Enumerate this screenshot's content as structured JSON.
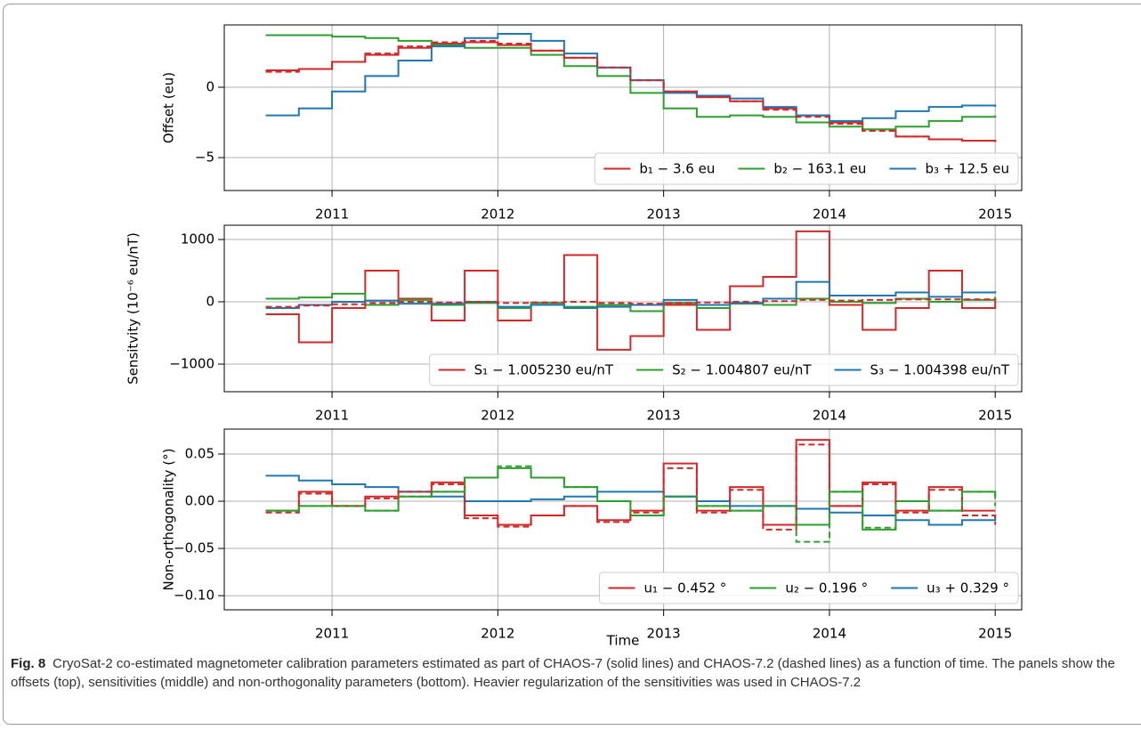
{
  "chart_data": [
    {
      "type": "line",
      "step": true,
      "ylabel": "Offset (eu)",
      "x": [
        2010.6,
        2010.8,
        2011.0,
        2011.2,
        2011.4,
        2011.6,
        2011.8,
        2012.0,
        2012.2,
        2012.4,
        2012.6,
        2012.8,
        2013.0,
        2013.2,
        2013.4,
        2013.6,
        2013.8,
        2014.0,
        2014.2,
        2014.4,
        2014.6,
        2014.8,
        2015.0
      ],
      "xlim": [
        2010.35,
        2015.16
      ],
      "xticks": [
        2011,
        2012,
        2013,
        2014,
        2015
      ],
      "ylim": [
        -7.34,
        4.43
      ],
      "yticks": [
        {
          "value": -5,
          "label": "−5"
        },
        0
      ],
      "grid": true,
      "legend": "lower right",
      "series": [
        {
          "name": "b₁ − 3.6 eu",
          "color": "#d62728",
          "values": [
            1.2,
            1.3,
            1.8,
            2.3,
            2.8,
            3.1,
            3.2,
            3.0,
            2.6,
            2.1,
            1.4,
            0.5,
            -0.3,
            -0.7,
            -1.0,
            -1.5,
            -2.0,
            -2.5,
            -3.0,
            -3.5,
            -3.7,
            -3.8,
            -3.9
          ]
        },
        {
          "name": "b₂ − 163.1 eu",
          "color": "#2ca02c",
          "values": [
            3.7,
            3.7,
            3.6,
            3.5,
            3.3,
            3.0,
            2.8,
            2.8,
            2.3,
            1.5,
            0.8,
            -0.4,
            -1.5,
            -2.1,
            -2.0,
            -2.1,
            -2.5,
            -2.8,
            -3.0,
            -2.8,
            -2.4,
            -2.1,
            -2.0
          ]
        },
        {
          "name": "b₃ + 12.5 eu",
          "color": "#1f77b4",
          "values": [
            -2.0,
            -1.5,
            -0.3,
            0.8,
            1.9,
            2.9,
            3.5,
            3.8,
            3.3,
            2.4,
            1.4,
            0.5,
            -0.4,
            -0.6,
            -0.8,
            -1.4,
            -2.0,
            -2.4,
            -2.2,
            -1.7,
            -1.4,
            -1.3,
            -1.4
          ]
        },
        {
          "color": "#d62728",
          "dash": true,
          "values": [
            1.1,
            1.3,
            1.8,
            2.4,
            2.9,
            3.2,
            3.3,
            3.1,
            2.6,
            2.1,
            1.4,
            0.5,
            -0.3,
            -0.7,
            -1.0,
            -1.6,
            -2.1,
            -2.6,
            -3.1,
            -3.5,
            -3.7,
            -3.8,
            -3.8
          ]
        }
      ]
    },
    {
      "type": "line",
      "step": true,
      "ylabel": "Sensitvity (10⁻⁶ eu/nT)",
      "x": [
        2010.6,
        2010.8,
        2011.0,
        2011.2,
        2011.4,
        2011.6,
        2011.8,
        2012.0,
        2012.2,
        2012.4,
        2012.6,
        2012.8,
        2013.0,
        2013.2,
        2013.4,
        2013.6,
        2013.8,
        2014.0,
        2014.2,
        2014.4,
        2014.6,
        2014.8,
        2015.0
      ],
      "xlim": [
        2010.35,
        2015.16
      ],
      "xticks": [
        2011,
        2012,
        2013,
        2014,
        2015
      ],
      "ylim": [
        -1443,
        1229
      ],
      "yticks": [
        {
          "value": -1000,
          "label": "−1000"
        },
        0,
        1000
      ],
      "grid": true,
      "legend": "lower right",
      "series": [
        {
          "name": "S₁ − 1.005230 eu/nT",
          "color": "#d62728",
          "values": [
            -200,
            -650,
            -100,
            500,
            50,
            -300,
            500,
            -300,
            -50,
            750,
            -770,
            -550,
            -50,
            -450,
            250,
            400,
            1130,
            -50,
            -450,
            -100,
            500,
            -100,
            50
          ]
        },
        {
          "name": "S₂ − 1.004807 eu/nT",
          "color": "#2ca02c",
          "values": [
            50,
            70,
            130,
            -50,
            30,
            -50,
            -20,
            -100,
            -20,
            -80,
            -50,
            -150,
            -20,
            -100,
            -30,
            -50,
            50,
            0,
            -20,
            50,
            0,
            30,
            80
          ]
        },
        {
          "name": "S₃ − 1.004398 eu/nT",
          "color": "#1f77b4",
          "values": [
            -100,
            -50,
            0,
            20,
            -30,
            -30,
            0,
            -80,
            -50,
            -100,
            -80,
            -50,
            30,
            -50,
            -20,
            50,
            320,
            100,
            100,
            150,
            80,
            150,
            170
          ]
        },
        {
          "color": "#d62728",
          "dash": true,
          "values": [
            -80,
            -60,
            -40,
            -20,
            0,
            -10,
            0,
            -20,
            -10,
            0,
            -20,
            -30,
            -20,
            -10,
            0,
            10,
            30,
            20,
            30,
            40,
            40,
            40,
            50
          ]
        }
      ]
    },
    {
      "type": "line",
      "step": true,
      "ylabel": "Non-orthogonality (°)",
      "xlabel": "Time",
      "x": [
        2010.6,
        2010.8,
        2011.0,
        2011.2,
        2011.4,
        2011.6,
        2011.8,
        2012.0,
        2012.2,
        2012.4,
        2012.6,
        2012.8,
        2013.0,
        2013.2,
        2013.4,
        2013.6,
        2013.8,
        2014.0,
        2014.2,
        2014.4,
        2014.6,
        2014.8,
        2015.0
      ],
      "xlim": [
        2010.35,
        2015.16
      ],
      "xticks": [
        2011,
        2012,
        2013,
        2014,
        2015
      ],
      "ylim": [
        -0.115,
        0.0764
      ],
      "yticks": [
        {
          "value": -0.1,
          "label": "−0.10"
        },
        {
          "value": -0.05,
          "label": "−0.05"
        },
        {
          "value": 0,
          "label": "0.00"
        },
        {
          "value": 0.05,
          "label": "0.05"
        }
      ],
      "grid": true,
      "legend": "lower right",
      "series": [
        {
          "name": "u₁ − 0.452 °",
          "color": "#d62728",
          "values": [
            -0.01,
            0.01,
            -0.005,
            0.005,
            0.01,
            0.02,
            -0.015,
            -0.025,
            -0.015,
            -0.005,
            -0.02,
            -0.01,
            0.04,
            -0.01,
            0.015,
            -0.025,
            0.065,
            -0.005,
            0.02,
            -0.01,
            0.015,
            -0.01,
            -0.01
          ]
        },
        {
          "name": "u₂ − 0.196 °",
          "color": "#2ca02c",
          "values": [
            -0.01,
            -0.005,
            -0.005,
            -0.01,
            0.005,
            0.01,
            0.025,
            0.035,
            0.025,
            0.015,
            0.0,
            -0.015,
            0.005,
            -0.005,
            -0.01,
            -0.005,
            -0.025,
            0.01,
            -0.03,
            0.0,
            -0.01,
            0.01,
            0.005
          ]
        },
        {
          "name": "u₃ + 0.329 °",
          "color": "#1f77b4",
          "values": [
            0.027,
            0.022,
            0.018,
            0.015,
            0.01,
            0.005,
            0.0,
            0.0,
            0.002,
            0.005,
            0.01,
            0.01,
            0.005,
            0.0,
            -0.005,
            -0.005,
            -0.008,
            -0.012,
            -0.015,
            -0.02,
            -0.025,
            -0.02,
            -0.015
          ]
        },
        {
          "color": "#d62728",
          "dash": true,
          "values": [
            -0.012,
            0.008,
            -0.005,
            0.003,
            0.01,
            0.018,
            -0.018,
            -0.027,
            -0.015,
            -0.005,
            -0.022,
            -0.012,
            0.035,
            -0.012,
            0.012,
            -0.03,
            0.06,
            -0.005,
            0.018,
            -0.012,
            0.012,
            -0.015,
            -0.025
          ]
        },
        {
          "color": "#2ca02c",
          "dash": true,
          "values": [
            -0.01,
            -0.005,
            -0.005,
            -0.01,
            0.005,
            0.01,
            0.025,
            0.037,
            0.025,
            0.015,
            0.0,
            -0.015,
            0.005,
            -0.005,
            -0.01,
            -0.005,
            -0.043,
            0.01,
            -0.028,
            0.0,
            -0.01,
            0.01,
            -0.005
          ]
        }
      ]
    }
  ],
  "figure": {
    "label": "Fig. 8",
    "caption": "CryoSat-2 co-estimated magnetometer calibration parameters estimated as part of CHAOS-7 (solid lines) and CHAOS-7.2 (dashed lines) as a function of time. The panels show the offsets (top), sensitivities (middle) and non-orthogonality parameters (bottom). Heavier regularization of the sensitivities was used in CHAOS-7.2"
  }
}
